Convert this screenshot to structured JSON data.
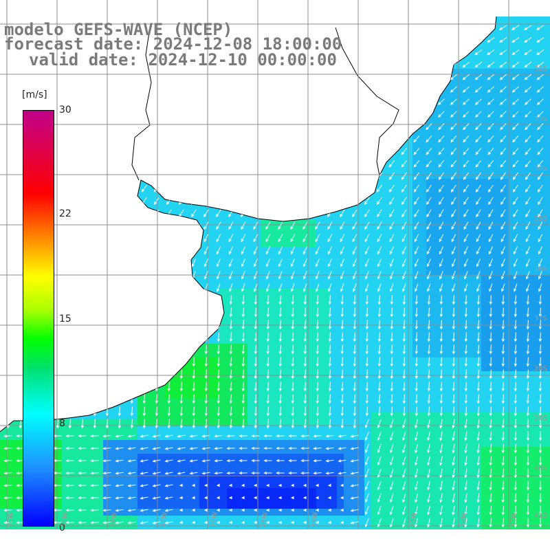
{
  "title": {
    "line1": "modelo GEFS-WAVE (NCEP)",
    "line2": "forecast date: 2024-12-08 18:00:00",
    "line3": "valid date: 2024-12-10 00:00:00"
  },
  "colorbar": {
    "unit": "[m/s]",
    "min": 0,
    "max": 30,
    "ticks": [
      "30",
      "22",
      "15",
      "8",
      "0"
    ]
  },
  "grid": {
    "lat_labels": [
      "32S",
      "33S",
      "34S",
      "35S",
      "36S",
      "37S",
      "38S",
      "39S",
      "40S",
      "41S"
    ],
    "lon_labels": [
      "60W",
      "59W",
      "58W",
      "57W",
      "56W",
      "55W",
      "54W",
      "53W",
      "52W",
      "51W"
    ]
  },
  "colors": {
    "land": "#ffffff",
    "coast": "#000000",
    "grid": "#8c8c8c",
    "arrow": "#ffffff",
    "title": "#7a7a7a"
  }
}
